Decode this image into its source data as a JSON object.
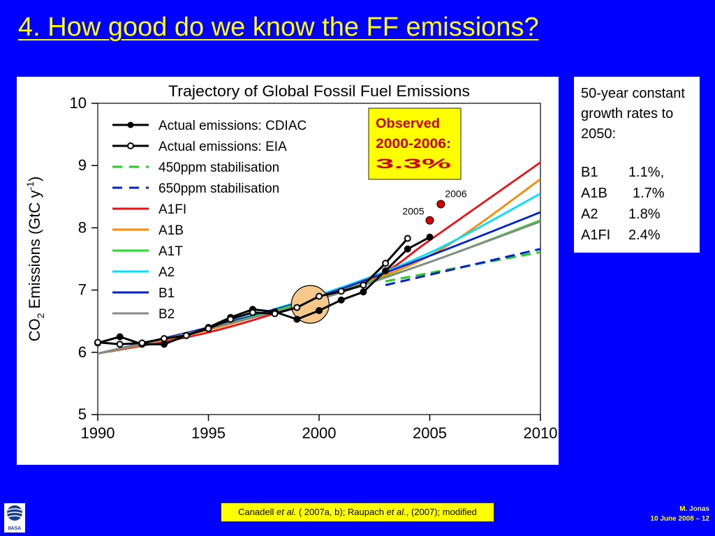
{
  "slide": {
    "title": "4. How good do we know the FF emissions?",
    "author": "M. Jonas",
    "date_page": "10 June 2008 – 12",
    "logo_text": "IIASA"
  },
  "citation": {
    "p1": "Canadell ",
    "p2": "et al.",
    "p3": " ( 2007a, b); Raupach ",
    "p4": "et al.",
    "p5": ", (2007); modified"
  },
  "info_box": {
    "header": "50-year constant growth rates to 2050:",
    "rates": [
      {
        "name": "B1",
        "value": "1.1%,"
      },
      {
        "name": "A1B",
        "value": "1.7%"
      },
      {
        "name": "A2",
        "value": "1.8%"
      },
      {
        "name": "A1FI",
        "value": "2.4%"
      }
    ]
  },
  "colors": {
    "background": "#0000ff",
    "title": "#ffff00",
    "highlight_box": "#ffff00",
    "observed_text": "#cc0000",
    "red_points": "#dd0000",
    "circle_fill": "#f6c98a"
  },
  "chart_data": {
    "type": "line",
    "title": "Trajectory of Global Fossil Fuel Emissions",
    "ylabel": {
      "main": "CO",
      "sub": "2",
      "mid": " Emissions (GtC y",
      "sup": "-1",
      "end": ")"
    },
    "xlabel": "",
    "xlim": [
      1990,
      2010
    ],
    "ylim": [
      5,
      10
    ],
    "xticks": [
      1990,
      1995,
      2000,
      2005,
      2010
    ],
    "yticks": [
      5,
      6,
      7,
      8,
      9,
      10
    ],
    "grid": false,
    "legend_position": "top-left",
    "annotation": {
      "lines": [
        "Observed",
        "2000-2006:",
        "3.3%"
      ]
    },
    "highlight_points": [
      {
        "label": "2005",
        "x": 2005.0,
        "y": 8.12
      },
      {
        "label": "2006",
        "x": 2005.5,
        "y": 8.38
      }
    ],
    "highlight_circle": {
      "x": 1999.6,
      "y": 6.77
    },
    "series": [
      {
        "name": "Actual emissions: CDIAC",
        "style": "black-filled",
        "color": "#000000",
        "x": [
          1990,
          1991,
          1992,
          1993,
          1994,
          1995,
          1996,
          1997,
          1998,
          1999,
          2000,
          2001,
          2002,
          2003,
          2004,
          2005
        ],
        "y": [
          6.15,
          6.25,
          6.13,
          6.13,
          6.27,
          6.4,
          6.56,
          6.69,
          6.65,
          6.53,
          6.67,
          6.84,
          6.97,
          7.31,
          7.66,
          7.85
        ]
      },
      {
        "name": "Actual emissions: EIA",
        "style": "black-open",
        "color": "#000000",
        "x": [
          1990,
          1991,
          1992,
          1993,
          1994,
          1995,
          1996,
          1997,
          1998,
          1999,
          2000,
          2001,
          2002,
          2003,
          2004
        ],
        "y": [
          6.16,
          6.13,
          6.15,
          6.22,
          6.27,
          6.38,
          6.53,
          6.64,
          6.62,
          6.72,
          6.9,
          6.98,
          7.08,
          7.43,
          7.83
        ]
      },
      {
        "name": "450ppm stabilisation",
        "style": "dashed",
        "color": "#22cc22",
        "x": [
          2003,
          2010
        ],
        "y": [
          7.14,
          7.61
        ]
      },
      {
        "name": "650ppm stabilisation",
        "style": "dashed",
        "color": "#0022cc",
        "x": [
          2003,
          2010
        ],
        "y": [
          7.08,
          7.66
        ]
      },
      {
        "name": "A1FI",
        "style": "solid",
        "color": "#ee1111",
        "x": [
          1990,
          1995,
          2000,
          2003,
          2005,
          2010
        ],
        "y": [
          5.98,
          6.32,
          6.86,
          7.3,
          7.8,
          9.05
        ]
      },
      {
        "name": "A1B",
        "style": "solid",
        "color": "#ff8800",
        "x": [
          1990,
          1995,
          2000,
          2005,
          2010
        ],
        "y": [
          5.98,
          6.36,
          6.9,
          7.55,
          8.78
        ]
      },
      {
        "name": "A1T",
        "style": "solid",
        "color": "#22dd22",
        "x": [
          1990,
          1995,
          2000,
          2005,
          2010
        ],
        "y": [
          5.98,
          6.38,
          6.88,
          7.45,
          8.12
        ]
      },
      {
        "name": "A2",
        "style": "solid",
        "color": "#00e0ff",
        "x": [
          1990,
          1995,
          2000,
          2005,
          2010
        ],
        "y": [
          5.98,
          6.4,
          6.92,
          7.6,
          8.55
        ]
      },
      {
        "name": "B1",
        "style": "solid",
        "color": "#0022cc",
        "x": [
          1990,
          1995,
          2000,
          2005,
          2010
        ],
        "y": [
          5.98,
          6.4,
          6.9,
          7.55,
          8.25
        ]
      },
      {
        "name": "B2",
        "style": "solid",
        "color": "#888888",
        "x": [
          1990,
          1995,
          2000,
          2005,
          2010
        ],
        "y": [
          5.98,
          6.38,
          6.85,
          7.45,
          8.1
        ]
      }
    ]
  }
}
